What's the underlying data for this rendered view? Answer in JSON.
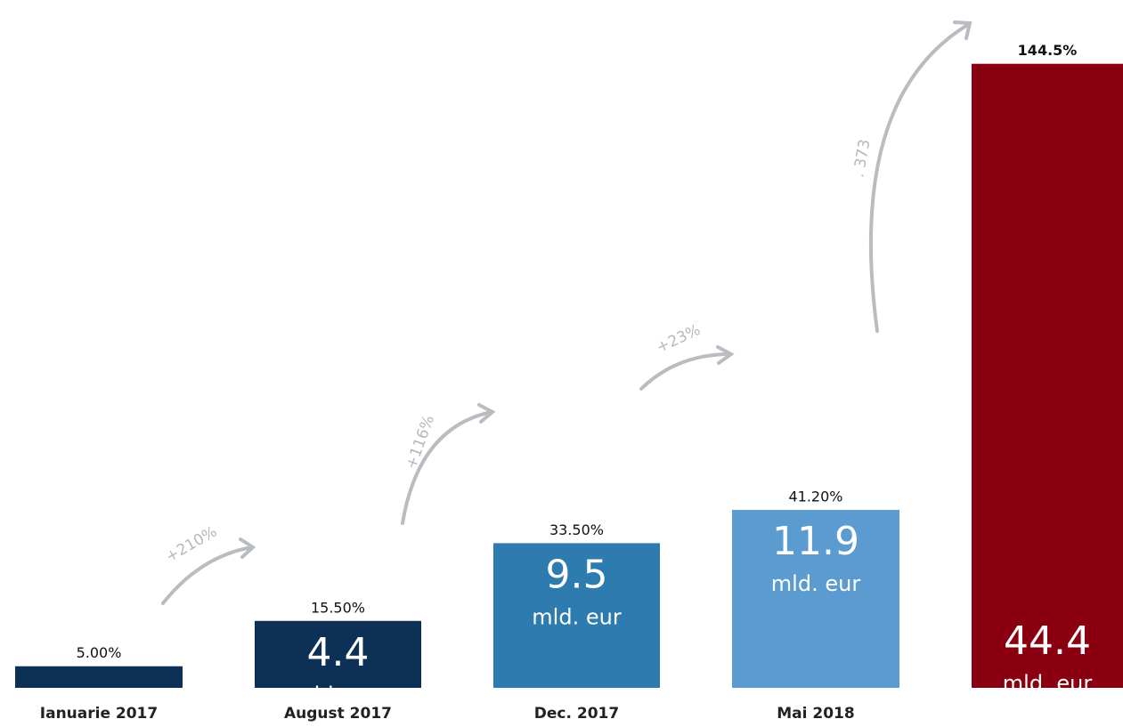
{
  "chart_data": {
    "type": "bar",
    "categories": [
      "Ianuarie 2017",
      "August 2017",
      "Dec. 2017",
      "Mai 2018",
      null
    ],
    "values": [
      5,
      15.5,
      33.5,
      41.2,
      144.5
    ],
    "value_labels": [
      "5.00%",
      "15.50%",
      "33.50%",
      "41.20%",
      "144.5%"
    ],
    "colors": [
      "#0d3057",
      "#0d3057",
      "#2e7bb0",
      "#5b9bcf",
      "#8b0011"
    ],
    "amounts": [
      null,
      4.4,
      9.5,
      11.9,
      44.4
    ],
    "amount_unit": "mld. eur",
    "annotations": [
      "+210%",
      "+116%",
      "+23%",
      ". 373"
    ],
    "ylim": [
      0,
      150
    ]
  }
}
